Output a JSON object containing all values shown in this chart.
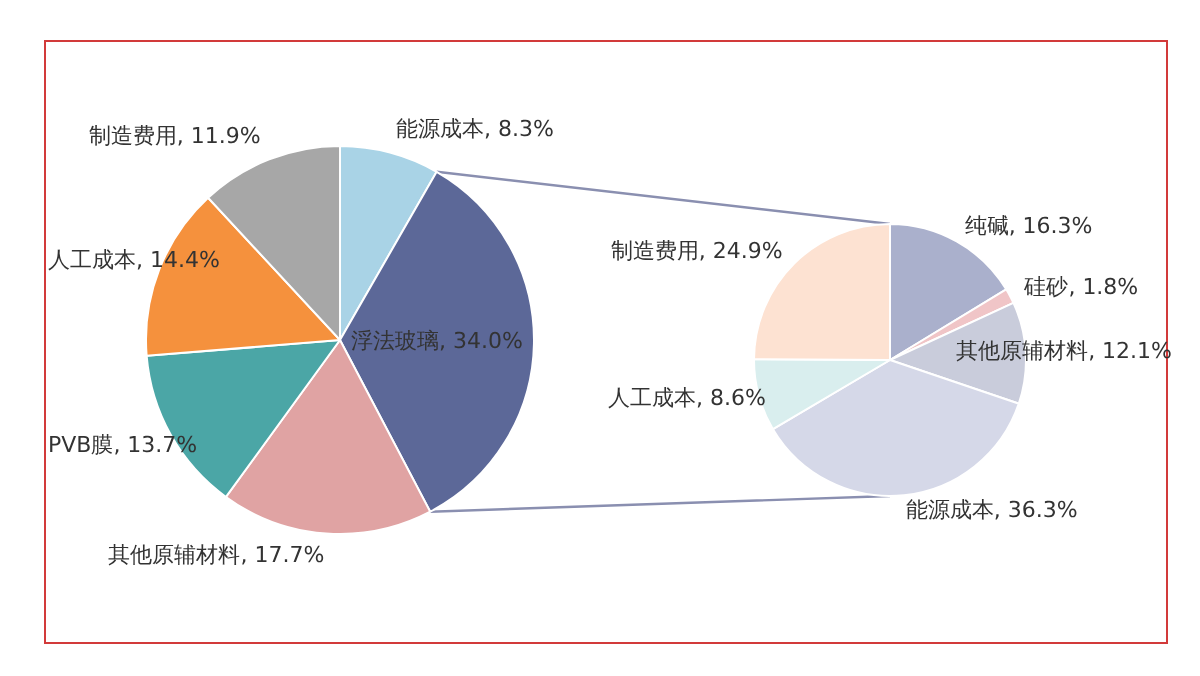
{
  "chart_data": [
    {
      "type": "pie",
      "categories": [
        "能源成本",
        "浮法玻璃",
        "其他原辅材料",
        "PVB膜",
        "人工成本",
        "制造费用"
      ],
      "values": [
        8.3,
        34.0,
        17.7,
        13.7,
        14.4,
        11.9
      ],
      "value_labels": [
        "8.3%",
        "34.0%",
        "17.7%",
        "13.7%",
        "14.4%",
        "11.9%"
      ],
      "colors": [
        "#a9d3e6",
        "#5c6898",
        "#e0a3a3",
        "#4ba6a6",
        "#f5913d",
        "#a7a7a7"
      ],
      "legend": false
    },
    {
      "type": "pie",
      "categories": [
        "纯碱",
        "硅砂",
        "其他原辅材料",
        "能源成本",
        "人工成本",
        "制造费用"
      ],
      "values": [
        16.3,
        1.8,
        12.1,
        36.3,
        8.6,
        24.9
      ],
      "value_labels": [
        "16.3%",
        "1.8%",
        "12.1%",
        "36.3%",
        "8.6%",
        "24.9%"
      ],
      "colors": [
        "#aab0cc",
        "#f0c5c7",
        "#c9ccdb",
        "#d5d8e8",
        "#d9eeee",
        "#fde2d2"
      ],
      "legend": false
    }
  ]
}
